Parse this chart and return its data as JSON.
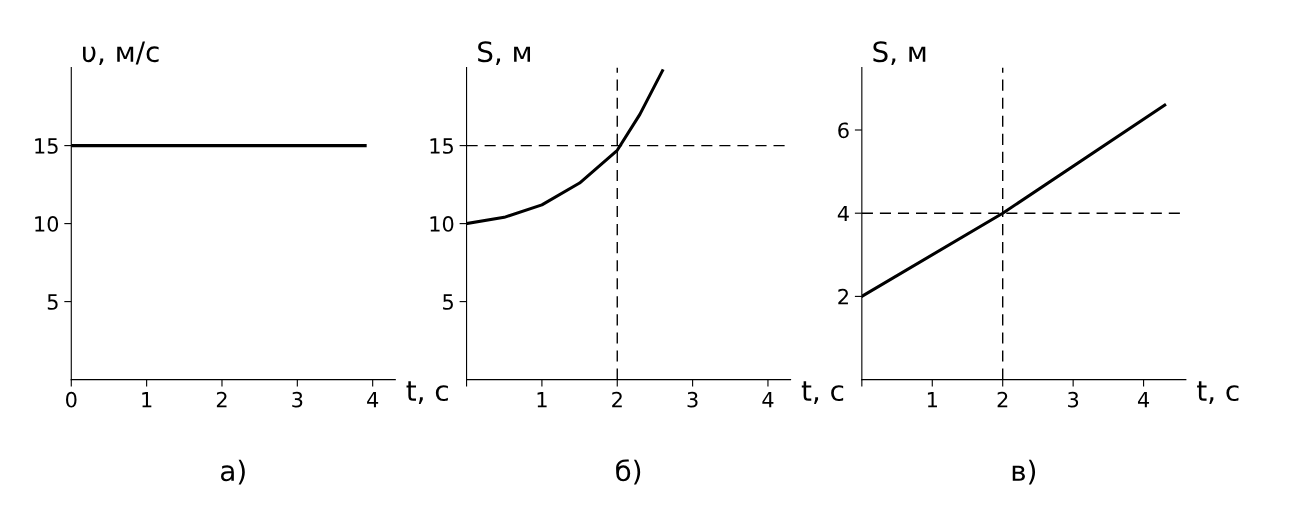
{
  "chart_data": [
    {
      "type": "line",
      "xlabel": "t, с",
      "ylabel": "υ, м/с",
      "annotations": [
        "а)"
      ],
      "x": [
        0,
        3.9
      ],
      "series": [
        {
          "color": "#000000",
          "values": [
            15,
            15
          ]
        }
      ],
      "xlim": [
        0,
        4.3
      ],
      "ylim": [
        0,
        20
      ],
      "xticks": [
        0,
        1,
        2,
        3,
        4
      ],
      "yticks": [
        5,
        10,
        15
      ],
      "grid": false,
      "legend": false
    },
    {
      "type": "line",
      "xlabel": "t, с",
      "ylabel": "S, м",
      "annotations": [
        "б)"
      ],
      "x": [
        0,
        0.5,
        1,
        1.5,
        2,
        2.3,
        2.6
      ],
      "series": [
        {
          "color": "#000000",
          "values": [
            10,
            10.4,
            11.2,
            12.6,
            14.7,
            17,
            19.8
          ]
        }
      ],
      "xlim": [
        0,
        4.3
      ],
      "ylim": [
        0,
        20
      ],
      "xticks": [
        {
          "value": 0,
          "label": null
        },
        1,
        2,
        3,
        4
      ],
      "yticks": [
        5,
        10,
        15
      ],
      "grid": false,
      "legend": false,
      "ref_lines": [
        {
          "axis": "x",
          "value": 2,
          "line_style": "dashed"
        },
        {
          "axis": "y",
          "value": 15,
          "line_style": "dashed"
        }
      ]
    },
    {
      "type": "line",
      "xlabel": "t, с",
      "ylabel": "S, м",
      "annotations": [
        "в)"
      ],
      "x": [
        0,
        2,
        4.3
      ],
      "series": [
        {
          "color": "#000000",
          "values": [
            2,
            4,
            6.6
          ]
        }
      ],
      "xlim": [
        0,
        4.6
      ],
      "ylim": [
        0,
        7.5
      ],
      "xticks": [
        {
          "value": 0,
          "label": null
        },
        1,
        2,
        3,
        4
      ],
      "yticks": [
        2,
        4,
        6
      ],
      "grid": false,
      "legend": false,
      "ref_lines": [
        {
          "axis": "x",
          "value": 2,
          "line_style": "dashed"
        },
        {
          "axis": "y",
          "value": 4,
          "line_style": "dashed"
        }
      ]
    }
  ]
}
